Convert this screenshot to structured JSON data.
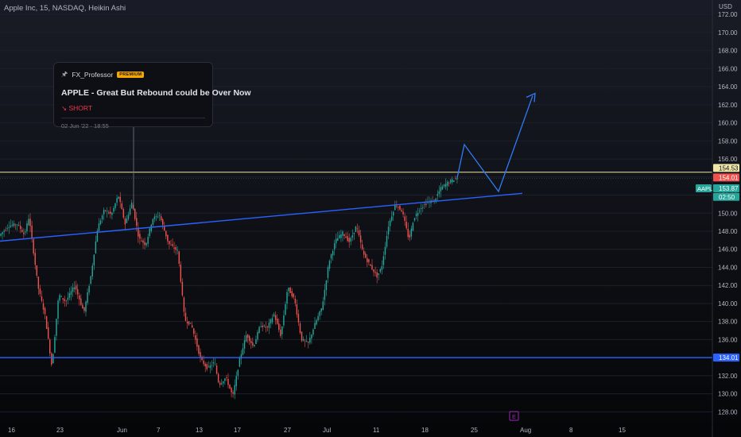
{
  "header": {
    "title": "Apple Inc, 15, NASDAQ, Heikin Ashi"
  },
  "idea_card": {
    "author": "FX_Professor",
    "badge": "PREMIUM",
    "title": "APPLE - Great But Rebound could be Over Now",
    "direction": "↘ SHORT",
    "date": "02 Jun '22 · 18:55"
  },
  "colors": {
    "background": "#131722",
    "up_candle": "#26a69a",
    "down_candle": "#ef5350",
    "trendline": "#2962ff",
    "projection": "#2f7bf5",
    "resistance_line": "#f0e6a8",
    "support_line": "#2962ff",
    "axis_text": "#b2b5be",
    "event_marker": "#9c27b0"
  },
  "chart_data": {
    "type": "candlestick",
    "symbol": "AAPL",
    "exchange": "NASDAQ",
    "interval": "15",
    "style": "Heikin Ashi",
    "y_axis": {
      "unit": "USD",
      "ticks": [
        "172.00",
        "170.00",
        "168.00",
        "166.00",
        "164.00",
        "162.00",
        "160.00",
        "158.00",
        "156.00",
        "154.00",
        "152.00",
        "150.00",
        "148.00",
        "146.00",
        "144.00",
        "142.00",
        "140.00",
        "138.00",
        "136.00",
        "134.00",
        "132.00",
        "130.00",
        "128.00"
      ],
      "range": [
        126.8,
        173.6
      ]
    },
    "x_axis": {
      "ticks": [
        "16",
        "23",
        "Jun",
        "7",
        "13",
        "17",
        "27",
        "Jul",
        "11",
        "18",
        "25",
        "Aug",
        "8",
        "15"
      ]
    },
    "price_labels": {
      "resistance": "154.53",
      "last_open": "154.01",
      "current_symbol": "AAPL",
      "current_price": "153.87",
      "countdown": "02:50",
      "support": "134.01"
    },
    "trendline": {
      "start_price": 146.9,
      "end_price": 152.2
    },
    "horizontal_levels": {
      "resistance": 154.53,
      "support": 134.01
    },
    "projection_path": [
      153.9,
      157.6,
      152.4,
      163.0
    ],
    "event_marker": "E",
    "price_path": [
      [
        0,
        147.5
      ],
      [
        0.02,
        148.6
      ],
      [
        0.04,
        148.8
      ],
      [
        0.055,
        147.6
      ],
      [
        0.065,
        149.6
      ],
      [
        0.085,
        141.8
      ],
      [
        0.1,
        138.7
      ],
      [
        0.115,
        133.0
      ],
      [
        0.13,
        141.0
      ],
      [
        0.145,
        140.2
      ],
      [
        0.165,
        142.0
      ],
      [
        0.185,
        139.0
      ],
      [
        0.2,
        143.0
      ],
      [
        0.215,
        148.4
      ],
      [
        0.23,
        150.4
      ],
      [
        0.245,
        149.8
      ],
      [
        0.26,
        152.0
      ],
      [
        0.275,
        148.8
      ],
      [
        0.29,
        151.2
      ],
      [
        0.305,
        147.2
      ],
      [
        0.32,
        146.5
      ],
      [
        0.335,
        149.4
      ],
      [
        0.35,
        149.8
      ],
      [
        0.37,
        146.6
      ],
      [
        0.39,
        145.8
      ],
      [
        0.405,
        138.2
      ],
      [
        0.42,
        137.6
      ],
      [
        0.44,
        133.8
      ],
      [
        0.455,
        132.8
      ],
      [
        0.47,
        133.5
      ],
      [
        0.48,
        131.0
      ],
      [
        0.495,
        131.8
      ],
      [
        0.51,
        129.7
      ],
      [
        0.525,
        133.8
      ],
      [
        0.54,
        136.6
      ],
      [
        0.555,
        135.2
      ],
      [
        0.57,
        137.6
      ],
      [
        0.585,
        137.3
      ],
      [
        0.6,
        138.8
      ],
      [
        0.615,
        136.4
      ],
      [
        0.63,
        141.8
      ],
      [
        0.645,
        140.4
      ],
      [
        0.66,
        136.0
      ],
      [
        0.675,
        135.6
      ],
      [
        0.69,
        137.8
      ],
      [
        0.705,
        139.6
      ],
      [
        0.72,
        144.6
      ],
      [
        0.735,
        147.0
      ],
      [
        0.75,
        147.8
      ],
      [
        0.765,
        146.8
      ],
      [
        0.78,
        148.6
      ],
      [
        0.795,
        145.5
      ],
      [
        0.81,
        144.2
      ],
      [
        0.825,
        143.0
      ],
      [
        0.835,
        144.0
      ],
      [
        0.85,
        148.6
      ],
      [
        0.865,
        151.0
      ],
      [
        0.88,
        150.2
      ],
      [
        0.895,
        147.0
      ],
      [
        0.905,
        149.4
      ],
      [
        0.92,
        150.6
      ],
      [
        0.935,
        151.2
      ],
      [
        0.95,
        151.4
      ],
      [
        0.965,
        152.8
      ],
      [
        0.98,
        153.4
      ],
      [
        1,
        153.9
      ]
    ]
  }
}
